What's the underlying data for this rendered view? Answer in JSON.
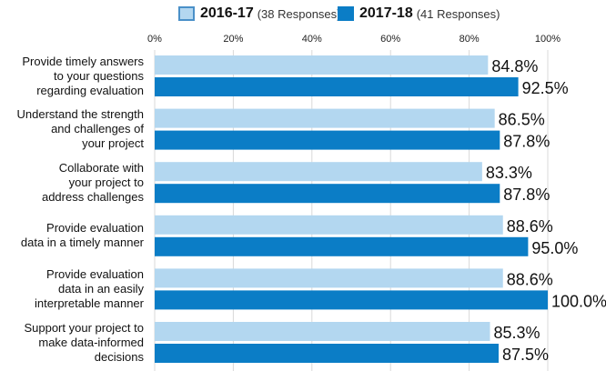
{
  "colors": {
    "series1": "#b3d7f0",
    "series1_border": "#4a90c8",
    "series2": "#0b7dc6",
    "grid": "#d9d9d9",
    "title": "#1a7bc4"
  },
  "chart_data": {
    "type": "bar",
    "orientation": "horizontal",
    "title": "",
    "xlabel": "",
    "ylabel": "",
    "xlim": [
      0,
      100
    ],
    "ticks": [
      "0%",
      "20%",
      "40%",
      "60%",
      "80%",
      "100%"
    ],
    "grid": true,
    "legend_position": "top",
    "categories": [
      "Provide timely answers to your questions regarding evaluation",
      "Understand the strength and challenges of your project",
      "Collaborate with your project to address challenges",
      "Provide evaluation data in a timely manner",
      "Provide evaluation data in an easily interpretable manner",
      "Support your project to make data-informed decisions"
    ],
    "category_lines": [
      [
        "Provide timely answers",
        "to your questions",
        "regarding evaluation"
      ],
      [
        "Understand the strength",
        "and challenges of",
        "your project"
      ],
      [
        "Collaborate with",
        "your project to",
        "address challenges"
      ],
      [
        "Provide evaluation",
        "data in a timely manner"
      ],
      [
        "Provide evaluation",
        "data in an easily",
        "interpretable manner"
      ],
      [
        "Support your project to",
        "make data-informed",
        "decisions"
      ]
    ],
    "series": [
      {
        "name": "2016-17",
        "note": "(38 Responses)",
        "values": [
          84.8,
          86.5,
          83.3,
          88.6,
          88.6,
          85.3
        ],
        "labels": [
          "84.8%",
          "86.5%",
          "83.3%",
          "88.6%",
          "88.6%",
          "85.3%"
        ]
      },
      {
        "name": "2017-18",
        "note": "(41 Responses)",
        "values": [
          92.5,
          87.8,
          87.8,
          95.0,
          100.0,
          87.5
        ],
        "labels": [
          "92.5%",
          "87.8%",
          "87.8%",
          "95.0%",
          "100.0%",
          "87.5%"
        ]
      }
    ]
  }
}
